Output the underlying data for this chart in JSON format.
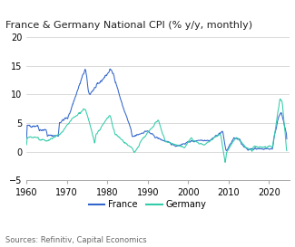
{
  "title": "France & Germany National CPI (% y/y, monthly)",
  "source": "Sources: Refinitiv, Capital Economics",
  "france_color": "#3366cc",
  "germany_color": "#33ccaa",
  "ylim": [
    -5,
    20
  ],
  "yticks": [
    -5,
    0,
    5,
    10,
    15,
    20
  ],
  "xlim_start": 1960,
  "xlim_end": 2025,
  "xticks": [
    1960,
    1970,
    1980,
    1990,
    2000,
    2010,
    2020
  ],
  "background_color": "#ffffff",
  "grid_color": "#cccccc",
  "linewidth": 0.75,
  "title_fontsize": 8,
  "tick_fontsize": 7,
  "legend_fontsize": 7,
  "source_fontsize": 6
}
